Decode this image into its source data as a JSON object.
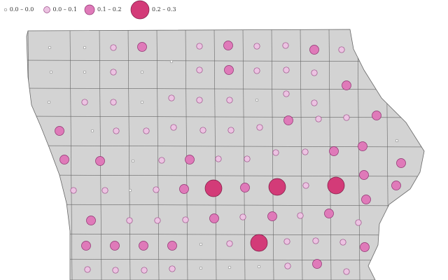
{
  "legend": {
    "items": [
      {
        "label": "0.0 – 0.0"
      },
      {
        "label": "0.0 – 0.1"
      },
      {
        "label": "0.1 – 0.2"
      },
      {
        "label": "0.2 – 0.3"
      }
    ]
  }
}
